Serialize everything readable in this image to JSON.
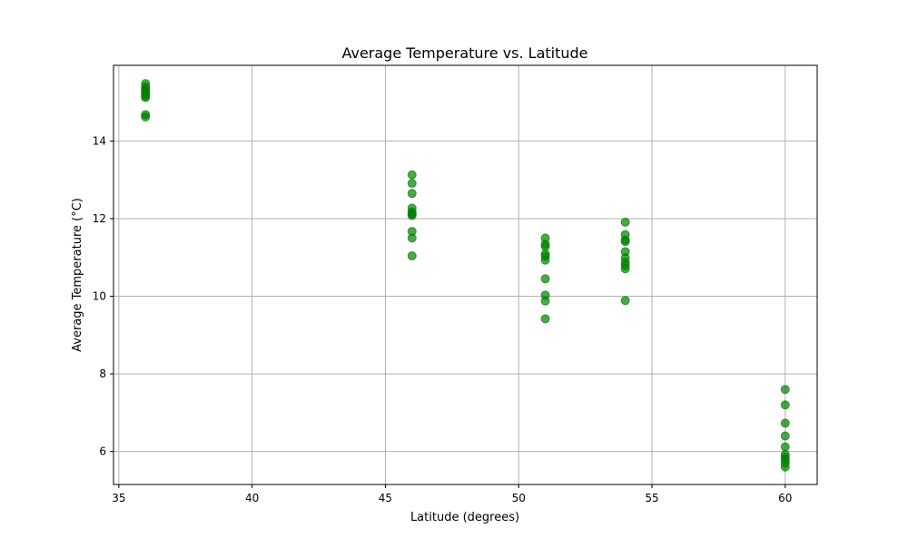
{
  "chart_data": {
    "type": "scatter",
    "title": "Average Temperature vs. Latitude",
    "xlabel": "Latitude (degrees)",
    "ylabel": "Average Temperature (°C)",
    "xlim": [
      34.8,
      61.2
    ],
    "ylim": [
      5.15,
      15.95
    ],
    "xticks": [
      35,
      40,
      45,
      50,
      55,
      60
    ],
    "yticks": [
      6,
      8,
      10,
      12,
      14
    ],
    "grid": true,
    "marker_color": "#008000",
    "marker_alpha": 0.7,
    "series": [
      {
        "points": [
          {
            "x": 36,
            "y": 15.48
          },
          {
            "x": 36,
            "y": 15.4
          },
          {
            "x": 36,
            "y": 15.35
          },
          {
            "x": 36,
            "y": 15.3
          },
          {
            "x": 36,
            "y": 15.25
          },
          {
            "x": 36,
            "y": 15.2
          },
          {
            "x": 36,
            "y": 15.16
          },
          {
            "x": 36,
            "y": 15.12
          },
          {
            "x": 36,
            "y": 14.68
          },
          {
            "x": 36,
            "y": 14.62
          },
          {
            "x": 46,
            "y": 13.13
          },
          {
            "x": 46,
            "y": 12.91
          },
          {
            "x": 46,
            "y": 12.65
          },
          {
            "x": 46,
            "y": 12.27
          },
          {
            "x": 46,
            "y": 12.17
          },
          {
            "x": 46,
            "y": 12.12
          },
          {
            "x": 46,
            "y": 12.08
          },
          {
            "x": 46,
            "y": 11.67
          },
          {
            "x": 46,
            "y": 11.5
          },
          {
            "x": 46,
            "y": 11.04
          },
          {
            "x": 51,
            "y": 11.5
          },
          {
            "x": 51,
            "y": 11.34
          },
          {
            "x": 51,
            "y": 11.28
          },
          {
            "x": 51,
            "y": 11.09
          },
          {
            "x": 51,
            "y": 11.03
          },
          {
            "x": 51,
            "y": 10.93
          },
          {
            "x": 51,
            "y": 10.45
          },
          {
            "x": 51,
            "y": 10.03
          },
          {
            "x": 51,
            "y": 9.88
          },
          {
            "x": 51,
            "y": 9.42
          },
          {
            "x": 54,
            "y": 11.91
          },
          {
            "x": 54,
            "y": 11.59
          },
          {
            "x": 54,
            "y": 11.45
          },
          {
            "x": 54,
            "y": 11.41
          },
          {
            "x": 54,
            "y": 11.15
          },
          {
            "x": 54,
            "y": 10.99
          },
          {
            "x": 54,
            "y": 10.88
          },
          {
            "x": 54,
            "y": 10.79
          },
          {
            "x": 54,
            "y": 10.71
          },
          {
            "x": 54,
            "y": 9.89
          },
          {
            "x": 60,
            "y": 7.6
          },
          {
            "x": 60,
            "y": 7.2
          },
          {
            "x": 60,
            "y": 6.73
          },
          {
            "x": 60,
            "y": 6.4
          },
          {
            "x": 60,
            "y": 6.12
          },
          {
            "x": 60,
            "y": 5.92
          },
          {
            "x": 60,
            "y": 5.85
          },
          {
            "x": 60,
            "y": 5.78
          },
          {
            "x": 60,
            "y": 5.7
          },
          {
            "x": 60,
            "y": 5.6
          }
        ]
      }
    ]
  }
}
